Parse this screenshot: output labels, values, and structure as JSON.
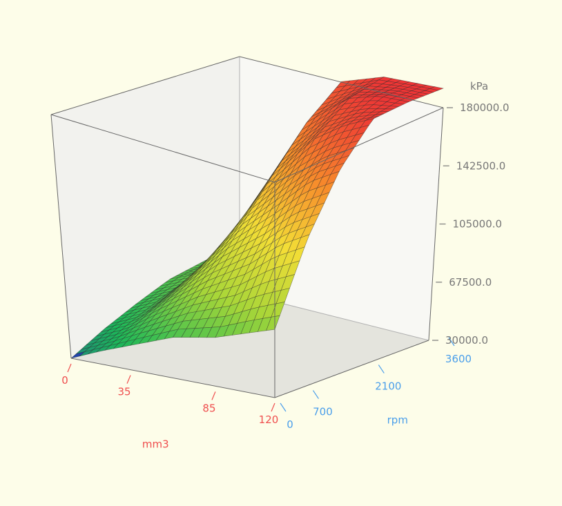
{
  "chart_data": {
    "type": "surface",
    "title": "",
    "x_axis": {
      "label": "mm3",
      "ticks": [
        0,
        35,
        85,
        120
      ],
      "range": [
        0,
        120
      ]
    },
    "y_axis": {
      "label": "rpm",
      "ticks": [
        0,
        700,
        2100,
        3600
      ],
      "range": [
        0,
        3600
      ]
    },
    "z_axis": {
      "label": "kPa",
      "ticks": [
        "30000.0",
        "67500.0",
        "105000.0",
        "142500.0",
        "180000.0"
      ],
      "range": [
        30000,
        180000
      ]
    },
    "grid": true,
    "color_scale": [
      "#2244aa",
      "#1db859",
      "#a8d638",
      "#f3dd36",
      "#f7892b",
      "#ee3535"
    ],
    "surface_estimate": {
      "description_values_note": "",
      "mm3": [
        0,
        17.5,
        35,
        60,
        85,
        102.5,
        120
      ],
      "rpm": [
        0,
        700,
        1400,
        2100,
        2850,
        3600
      ],
      "kPa": [
        [
          30000,
          40000,
          48000,
          55000,
          58000,
          60000
        ],
        [
          38000,
          48000,
          56000,
          62000,
          64000,
          66000
        ],
        [
          45000,
          62000,
          75000,
          88000,
          110000,
          128000
        ],
        [
          55000,
          80000,
          105000,
          130000,
          155000,
          172000
        ],
        [
          60000,
          95000,
          128000,
          158000,
          175000,
          180000
        ],
        [
          66000,
          110000,
          145000,
          170000,
          180000,
          180000
        ],
        [
          72000,
          120000,
          155000,
          178000,
          180000,
          180000
        ]
      ]
    }
  }
}
